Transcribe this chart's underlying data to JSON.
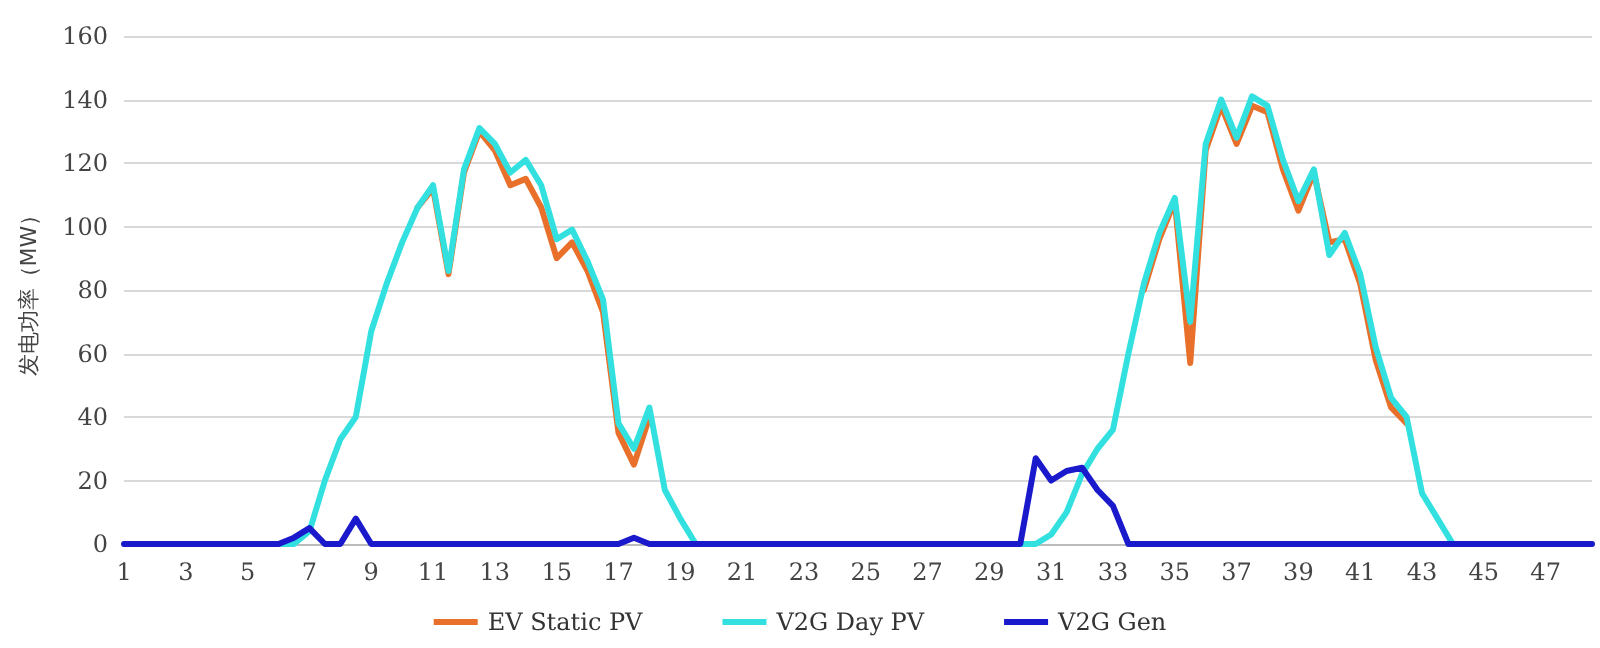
{
  "chart_data": {
    "type": "line",
    "ylabel": "发电功率（MW）",
    "x": [
      1,
      1.5,
      2,
      2.5,
      3,
      3.5,
      4,
      4.5,
      5,
      5.5,
      6,
      6.5,
      7,
      7.5,
      8,
      8.5,
      9,
      9.5,
      10,
      10.5,
      11,
      11.5,
      12,
      12.5,
      13,
      13.5,
      14,
      14.5,
      15,
      15.5,
      16,
      16.5,
      17,
      17.5,
      18,
      18.5,
      19,
      19.5,
      20,
      20.5,
      21,
      21.5,
      22,
      22.5,
      23,
      23.5,
      24,
      24.5,
      25,
      25.5,
      26,
      26.5,
      27,
      27.5,
      28,
      28.5,
      29,
      29.5,
      30,
      30.5,
      31,
      31.5,
      32,
      32.5,
      33,
      33.5,
      34,
      34.5,
      35,
      35.5,
      36,
      36.5,
      37,
      37.5,
      38,
      38.5,
      39,
      39.5,
      40,
      40.5,
      41,
      41.5,
      42,
      42.5,
      43,
      43.5,
      44,
      44.5,
      45,
      45.5,
      46,
      46.5,
      47,
      47.5,
      48,
      48.5
    ],
    "xlim": [
      1,
      48.5
    ],
    "xticks": [
      1,
      3,
      5,
      7,
      9,
      11,
      13,
      15,
      17,
      19,
      21,
      23,
      25,
      27,
      29,
      31,
      33,
      35,
      37,
      39,
      41,
      43,
      45,
      47
    ],
    "ylim": [
      0,
      160
    ],
    "yticks": [
      0,
      20,
      40,
      60,
      80,
      100,
      120,
      140,
      160
    ],
    "grid": "y",
    "legend": "bottom",
    "marker": "none",
    "line_style": "solid",
    "series": [
      {
        "name": "EV Static PV",
        "color": "#e8702a",
        "values": [
          null,
          null,
          null,
          null,
          null,
          null,
          null,
          null,
          null,
          null,
          null,
          null,
          null,
          null,
          null,
          null,
          null,
          null,
          null,
          106,
          112,
          85,
          117,
          130,
          124,
          113,
          115,
          106,
          90,
          95,
          86,
          73,
          35,
          25,
          40,
          null,
          null,
          null,
          null,
          null,
          null,
          null,
          null,
          null,
          null,
          null,
          null,
          null,
          null,
          null,
          null,
          null,
          null,
          null,
          null,
          null,
          null,
          null,
          null,
          null,
          null,
          null,
          null,
          null,
          null,
          null,
          80,
          96,
          108,
          57,
          124,
          138,
          126,
          138,
          136,
          118,
          105,
          117,
          95,
          96,
          82,
          58,
          43,
          38,
          null,
          null,
          null,
          null,
          null,
          null,
          null,
          null,
          null,
          null,
          null,
          null
        ]
      },
      {
        "name": "V2G Day PV",
        "color": "#33e0e0",
        "values": [
          null,
          null,
          null,
          null,
          null,
          null,
          null,
          null,
          null,
          0,
          0,
          0,
          4,
          20,
          33,
          40,
          67,
          82,
          95,
          106,
          113,
          86,
          118,
          131,
          126,
          117,
          121,
          113,
          96,
          99,
          89,
          77,
          38,
          30,
          43,
          17,
          8,
          0,
          0,
          0,
          0,
          0,
          0,
          0,
          0,
          0,
          0,
          0,
          0,
          0,
          0,
          0,
          0,
          0,
          0,
          0,
          0,
          0,
          0,
          0,
          3,
          10,
          22,
          30,
          36,
          60,
          82,
          98,
          109,
          70,
          126,
          140,
          128,
          141,
          138,
          121,
          108,
          118,
          91,
          98,
          85,
          62,
          46,
          40,
          16,
          8,
          0,
          0,
          0,
          null,
          null,
          null,
          null,
          null,
          null,
          null
        ]
      },
      {
        "name": "V2G Gen",
        "color": "#1a1acc",
        "values": [
          0,
          0,
          0,
          0,
          0,
          0,
          0,
          0,
          0,
          0,
          0,
          2,
          5,
          0,
          0,
          8,
          0,
          0,
          0,
          0,
          0,
          0,
          0,
          0,
          0,
          0,
          0,
          0,
          0,
          0,
          0,
          0,
          0,
          2,
          0,
          0,
          0,
          0,
          0,
          0,
          0,
          0,
          0,
          0,
          0,
          0,
          0,
          0,
          0,
          0,
          0,
          0,
          0,
          0,
          0,
          0,
          0,
          0,
          0,
          27,
          20,
          23,
          24,
          17,
          12,
          0,
          0,
          0,
          0,
          0,
          0,
          0,
          0,
          0,
          0,
          0,
          0,
          0,
          0,
          0,
          0,
          0,
          0,
          0,
          0,
          0,
          0,
          0,
          0,
          0,
          0,
          0,
          0,
          0,
          0,
          0
        ]
      }
    ]
  }
}
